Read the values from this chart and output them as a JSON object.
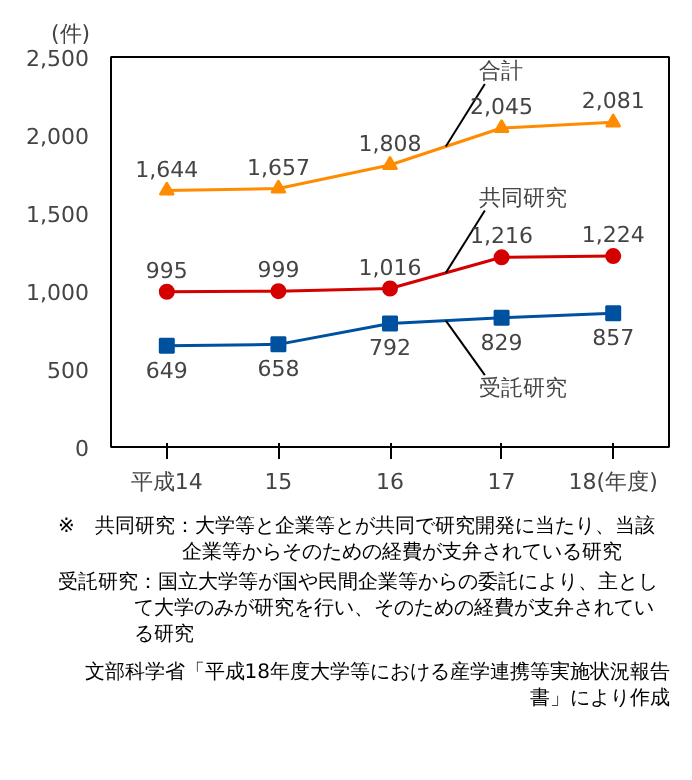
{
  "chart_data": {
    "type": "line",
    "ylabel": "(件)",
    "xlabel": "(年度)",
    "categories": [
      "平成14",
      "15",
      "16",
      "17",
      "18"
    ],
    "series": [
      {
        "name": "合計",
        "color": "#ff8c00",
        "marker": "triangle",
        "values": [
          1644,
          1657,
          1808,
          2045,
          2081
        ],
        "value_labels": [
          "1,644",
          "1,657",
          "1,808",
          "2,045",
          "2,081"
        ]
      },
      {
        "name": "共同研究",
        "color": "#d40000",
        "marker": "circle",
        "values": [
          995,
          999,
          1016,
          1216,
          1224
        ],
        "value_labels": [
          "995",
          "999",
          "1,016",
          "1,216",
          "1,224"
        ]
      },
      {
        "name": "受託研究",
        "color": "#0050a0",
        "marker": "square",
        "values": [
          649,
          658,
          792,
          829,
          857
        ],
        "value_labels": [
          "649",
          "658",
          "792",
          "829",
          "857"
        ]
      }
    ],
    "ylim": [
      0,
      2500
    ],
    "yticks": [
      0,
      500,
      {
        "value": 1000,
        "label": "1,000"
      },
      {
        "value": 1500,
        "label": "1,500"
      },
      {
        "value": 2000,
        "label": "2,000"
      },
      {
        "value": 2500,
        "label": "2,500"
      }
    ],
    "grid": false,
    "annotations": [
      "※　共同研究：大学等と企業等とが共同で研究開発に当たり、当該企業等からそのための経費が支弁されている研究",
      "受託研究：国立大学等が国や民間企業等からの委託により、主として大学のみが研究を行い、そのための経費が支弁されている研究",
      "文部科学省「平成18年度大学等における産学連携等実施状況報告書」により作成"
    ]
  }
}
